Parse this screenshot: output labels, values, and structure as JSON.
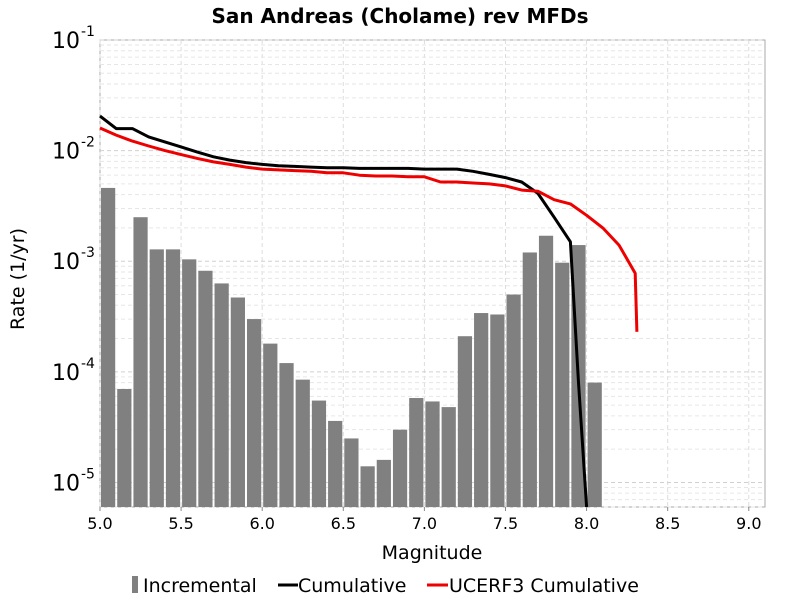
{
  "chart_data": {
    "type": "bar",
    "title": "San Andreas (Cholame) rev MFDs",
    "xlabel": "Magnitude",
    "ylabel": "Rate (1/yr)",
    "xlim": [
      5.0,
      9.1
    ],
    "ylim": [
      6e-06,
      0.1
    ],
    "yscale": "log",
    "grid": true,
    "legend_position": "bottom",
    "x_ticks": [
      "5.0",
      "5.5",
      "6.0",
      "6.5",
      "7.0",
      "7.5",
      "8.0",
      "8.5",
      "9.0"
    ],
    "y_ticks": [
      {
        "value": 1e-05,
        "base": "10",
        "exp": "-5"
      },
      {
        "value": 0.0001,
        "base": "10",
        "exp": "-4"
      },
      {
        "value": 0.001,
        "base": "10",
        "exp": "-3"
      },
      {
        "value": 0.01,
        "base": "10",
        "exp": "-2"
      },
      {
        "value": 0.1,
        "base": "10",
        "exp": "-1"
      }
    ],
    "series": [
      {
        "name": "Incremental",
        "type": "bar",
        "color": "#808080",
        "x": [
          5.0,
          5.1,
          5.2,
          5.3,
          5.4,
          5.5,
          5.6,
          5.7,
          5.8,
          5.9,
          6.0,
          6.1,
          6.2,
          6.3,
          6.4,
          6.5,
          6.6,
          6.7,
          6.8,
          6.9,
          7.0,
          7.1,
          7.2,
          7.3,
          7.4,
          7.5,
          7.6,
          7.7,
          7.8,
          7.9,
          8.0
        ],
        "values": [
          0.0046,
          7e-05,
          0.0025,
          0.00128,
          0.00128,
          0.00104,
          0.00082,
          0.00063,
          0.00047,
          0.0003,
          0.00018,
          0.00012,
          8.5e-05,
          5.5e-05,
          3.6e-05,
          2.5e-05,
          1.4e-05,
          1.6e-05,
          3e-05,
          5.8e-05,
          5.4e-05,
          4.8e-05,
          0.00021,
          0.00034,
          0.00033,
          0.0005,
          0.0012,
          0.0017,
          0.00097,
          0.0014,
          8e-05
        ]
      },
      {
        "name": "Cumulative",
        "type": "line",
        "color": "#000000",
        "x": [
          5.0,
          5.1,
          5.2,
          5.3,
          5.4,
          5.5,
          5.6,
          5.7,
          5.8,
          5.9,
          6.0,
          6.1,
          6.2,
          6.3,
          6.4,
          6.5,
          6.6,
          6.7,
          6.8,
          6.9,
          7.0,
          7.1,
          7.2,
          7.3,
          7.4,
          7.5,
          7.6,
          7.7,
          7.8,
          7.9,
          7.95,
          8.0
        ],
        "values": [
          0.0205,
          0.0158,
          0.0158,
          0.0133,
          0.012,
          0.0108,
          0.0097,
          0.0088,
          0.0082,
          0.0078,
          0.0075,
          0.0073,
          0.0072,
          0.0071,
          0.007,
          0.007,
          0.0069,
          0.0069,
          0.0069,
          0.0069,
          0.0068,
          0.0068,
          0.0068,
          0.0065,
          0.0061,
          0.0057,
          0.0052,
          0.0041,
          0.0025,
          0.0015,
          8e-05,
          1e-06
        ]
      },
      {
        "name": "UCERF3 Cumulative",
        "type": "line",
        "color": "#ee0000",
        "x": [
          5.0,
          5.1,
          5.2,
          5.3,
          5.4,
          5.5,
          5.6,
          5.7,
          5.8,
          5.9,
          6.0,
          6.1,
          6.2,
          6.3,
          6.4,
          6.5,
          6.6,
          6.7,
          6.8,
          6.9,
          7.0,
          7.1,
          7.2,
          7.3,
          7.4,
          7.5,
          7.6,
          7.7,
          7.8,
          7.9,
          8.0,
          8.1,
          8.2,
          8.3,
          8.31
        ],
        "values": [
          0.016,
          0.0138,
          0.0122,
          0.011,
          0.01,
          0.0092,
          0.0085,
          0.0079,
          0.0075,
          0.0071,
          0.0068,
          0.0067,
          0.0066,
          0.0065,
          0.0063,
          0.0063,
          0.006,
          0.0059,
          0.0059,
          0.0058,
          0.0058,
          0.0052,
          0.0052,
          0.0051,
          0.005,
          0.0048,
          0.0044,
          0.0043,
          0.0036,
          0.0033,
          0.0026,
          0.002,
          0.0014,
          0.00078,
          0.00023
        ]
      }
    ],
    "legend": [
      {
        "label": "Incremental",
        "symbol": "bar",
        "color": "#808080"
      },
      {
        "label": "Cumulative",
        "symbol": "line",
        "color": "#000000"
      },
      {
        "label": "UCERF3 Cumulative",
        "symbol": "line",
        "color": "#ee0000"
      }
    ]
  }
}
